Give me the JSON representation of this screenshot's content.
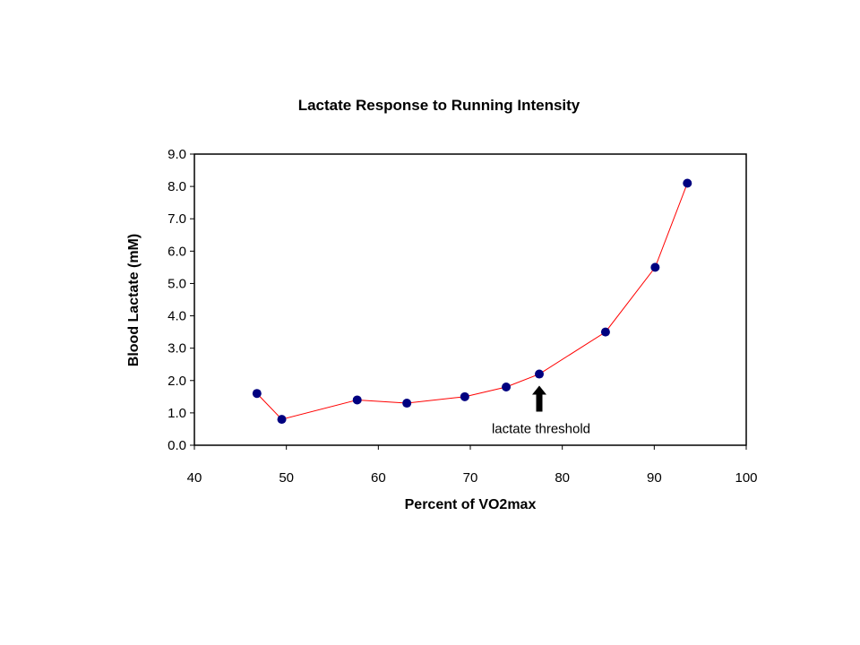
{
  "chart_data": {
    "type": "scatter",
    "title": "Lactate Response to Running Intensity",
    "xlabel": "Percent of VO2max",
    "ylabel": "Blood Lactate (mM)",
    "xlim": [
      40,
      100
    ],
    "ylim": [
      0,
      9
    ],
    "x_ticks": [
      "40",
      "50",
      "60",
      "70",
      "80",
      "90",
      "100"
    ],
    "y_ticks": [
      "0.0",
      "1.0",
      "2.0",
      "3.0",
      "4.0",
      "5.0",
      "6.0",
      "7.0",
      "8.0",
      "9.0"
    ],
    "grid": false,
    "legend": "none",
    "connected_line": true,
    "marker_color": "#000080",
    "line_color": "#ff0000",
    "series": [
      {
        "x": [
          46.8,
          49.5,
          57.7,
          63.1,
          69.4,
          73.9,
          77.5,
          84.7,
          90.1,
          93.6
        ],
        "y": [
          1.6,
          0.8,
          1.4,
          1.3,
          1.5,
          1.8,
          2.2,
          3.5,
          5.5,
          8.1
        ]
      }
    ],
    "annotations": [
      {
        "text": "lactate threshold",
        "x": 77.5,
        "y": 2.2,
        "arrow": "up"
      }
    ]
  }
}
